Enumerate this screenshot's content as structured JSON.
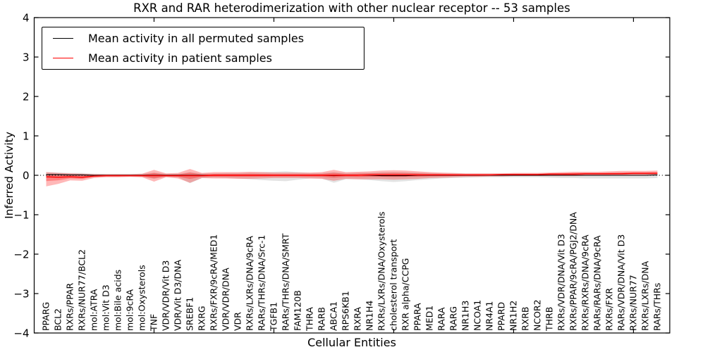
{
  "chart_data": {
    "type": "line",
    "title": "RXR and RAR heterodimerization with other nuclear receptor -- 53 samples",
    "xlabel": "Cellular Entities",
    "ylabel": "Inferred Activity",
    "ylim": [
      -4,
      4
    ],
    "yticks": [
      4,
      3,
      2,
      1,
      0,
      -1,
      -2,
      -3,
      -4
    ],
    "xtick_positions": [
      10,
      20,
      30,
      40,
      50
    ],
    "grid": false,
    "zero_line": 0,
    "colors": {
      "permuted": "#000000",
      "patient": "#ff0000",
      "permuted_band": "#808080",
      "patient_band": "#ff0000"
    },
    "legend": {
      "position": "upper left",
      "entries": [
        {
          "label": "Mean activity in all permuted samples",
          "color": "#000000"
        },
        {
          "label": "Mean activity in patient samples",
          "color": "#ff0000"
        }
      ]
    },
    "categories": [
      "PPARG",
      "BCL2",
      "RXRs/PPAR",
      "RXRs/NUR77/BCL2",
      "mol:ATRA",
      "mol:Vit D3",
      "mol:Bile acids",
      "mol:9cRA",
      "mol:Oxysterols",
      "TNF",
      "VDR/VDR/Vit D3",
      "VDR/Vit D3/DNA",
      "SREBF1",
      "RXRG",
      "RXRs/FXR/9cRA/MED1",
      "VDR/VDR/DNA",
      "VDR",
      "RXRs/LXRs/DNA/9cRA",
      "RARs/THRs/DNA/Src-1",
      "TGFB1",
      "RARs/THRs/DNA/SMRT",
      "FAM120B",
      "THRA",
      "RARB",
      "ABCA1",
      "RPS6KB1",
      "RXRA",
      "NR1H4",
      "RXRs/LXRs/DNA/Oxysterols",
      "cholesterol transport",
      "RXR alpha/CCPG",
      "PPARA",
      "MED1",
      "RARA",
      "RARG",
      "NR1H3",
      "NCOA1",
      "NR4A1",
      "PPARD",
      "NR1H2",
      "RXRB",
      "NCOR2",
      "THRB",
      "RXRs/VDR/DNA/Vit D3",
      "RXRs/PPAR/9cRA/PGJ2/DNA",
      "RXRs/RXRs/DNA/9cRA",
      "RARs/RARs/DNA/9cRA",
      "RXRs/FXR",
      "RARs/VDR/DNA/Vit D3",
      "RXRs/NUR77",
      "RXRs/LXRs/DNA",
      "RARs/THRs"
    ],
    "series": [
      {
        "name": "Mean activity in all permuted samples",
        "color": "#000000",
        "values": [
          0.02,
          0.02,
          0.01,
          0.01,
          0,
          0,
          0,
          0,
          0,
          0,
          0,
          0,
          0,
          0,
          0,
          0,
          0,
          0,
          0,
          0,
          0,
          0,
          0,
          0,
          -0.01,
          0,
          0,
          0,
          -0.01,
          -0.01,
          -0.01,
          0,
          0,
          0,
          0,
          0,
          0,
          0,
          0,
          0,
          0,
          0,
          0,
          0,
          0,
          0,
          0,
          0,
          0,
          0,
          0,
          0.01
        ]
      },
      {
        "name": "Mean activity in patient samples",
        "color": "#ff0000",
        "values": [
          -0.04,
          -0.05,
          -0.04,
          -0.05,
          -0.02,
          -0.01,
          -0.01,
          -0.01,
          -0.01,
          -0.01,
          -0.01,
          -0.01,
          -0.01,
          -0.01,
          0,
          0,
          0,
          0,
          0,
          0,
          0,
          0,
          0,
          0,
          0,
          0,
          0,
          0.01,
          0.01,
          0.01,
          0.01,
          0.01,
          0.01,
          0.01,
          0.01,
          0.01,
          0.01,
          0.01,
          0.02,
          0.02,
          0.02,
          0.02,
          0.03,
          0.03,
          0.03,
          0.04,
          0.04,
          0.04,
          0.04,
          0.05,
          0.05,
          0.05
        ]
      }
    ],
    "bands": [
      {
        "name": "permuted-std",
        "color": "#808080",
        "alpha": 0.22,
        "lower": [
          -0.06,
          -0.05,
          -0.05,
          -0.06,
          -0.04,
          -0.03,
          -0.03,
          -0.03,
          -0.04,
          -0.09,
          -0.04,
          -0.05,
          -0.2,
          -0.07,
          -0.06,
          -0.07,
          -0.08,
          -0.1,
          -0.12,
          -0.14,
          -0.15,
          -0.11,
          -0.08,
          -0.08,
          -0.19,
          -0.1,
          -0.1,
          -0.12,
          -0.15,
          -0.17,
          -0.15,
          -0.12,
          -0.1,
          -0.08,
          -0.07,
          -0.06,
          -0.05,
          -0.05,
          -0.05,
          -0.05,
          -0.05,
          -0.05,
          -0.06,
          -0.07,
          -0.07,
          -0.08,
          -0.08,
          -0.08,
          -0.08,
          -0.08,
          -0.08,
          -0.07
        ],
        "upper": [
          0.08,
          0.07,
          0.06,
          0.06,
          0.04,
          0.03,
          0.03,
          0.03,
          0.04,
          0.07,
          0.04,
          0.04,
          0.08,
          0.05,
          0.05,
          0.06,
          0.06,
          0.07,
          0.08,
          0.09,
          0.1,
          0.08,
          0.06,
          0.06,
          0.08,
          0.06,
          0.07,
          0.07,
          0.08,
          0.08,
          0.08,
          0.07,
          0.06,
          0.05,
          0.05,
          0.04,
          0.04,
          0.04,
          0.04,
          0.04,
          0.04,
          0.04,
          0.05,
          0.05,
          0.05,
          0.05,
          0.05,
          0.06,
          0.06,
          0.06,
          0.06,
          0.06
        ]
      },
      {
        "name": "patient-std",
        "color": "#ff0000",
        "alpha": 0.28,
        "lower": [
          -0.28,
          -0.22,
          -0.13,
          -0.14,
          -0.07,
          -0.05,
          -0.05,
          -0.04,
          -0.05,
          -0.16,
          -0.05,
          -0.08,
          -0.19,
          -0.07,
          -0.08,
          -0.08,
          -0.09,
          -0.09,
          -0.08,
          -0.07,
          -0.07,
          -0.07,
          -0.08,
          -0.09,
          -0.14,
          -0.09,
          -0.1,
          -0.1,
          -0.1,
          -0.11,
          -0.1,
          -0.09,
          -0.07,
          -0.06,
          -0.05,
          -0.04,
          -0.04,
          -0.03,
          -0.03,
          -0.02,
          -0.02,
          -0.02,
          -0.02,
          -0.02,
          -0.02,
          -0.01,
          -0.01,
          -0.01,
          0,
          0,
          0,
          0.01
        ],
        "upper": [
          0.08,
          0.06,
          0.05,
          0.04,
          0.03,
          0.03,
          0.03,
          0.03,
          0.04,
          0.14,
          0.05,
          0.06,
          0.16,
          0.06,
          0.08,
          0.08,
          0.08,
          0.09,
          0.08,
          0.07,
          0.07,
          0.07,
          0.07,
          0.08,
          0.14,
          0.08,
          0.09,
          0.1,
          0.12,
          0.13,
          0.12,
          0.1,
          0.08,
          0.07,
          0.06,
          0.05,
          0.05,
          0.05,
          0.05,
          0.06,
          0.06,
          0.06,
          0.07,
          0.08,
          0.09,
          0.09,
          0.09,
          0.1,
          0.11,
          0.11,
          0.11,
          0.12
        ]
      }
    ]
  }
}
